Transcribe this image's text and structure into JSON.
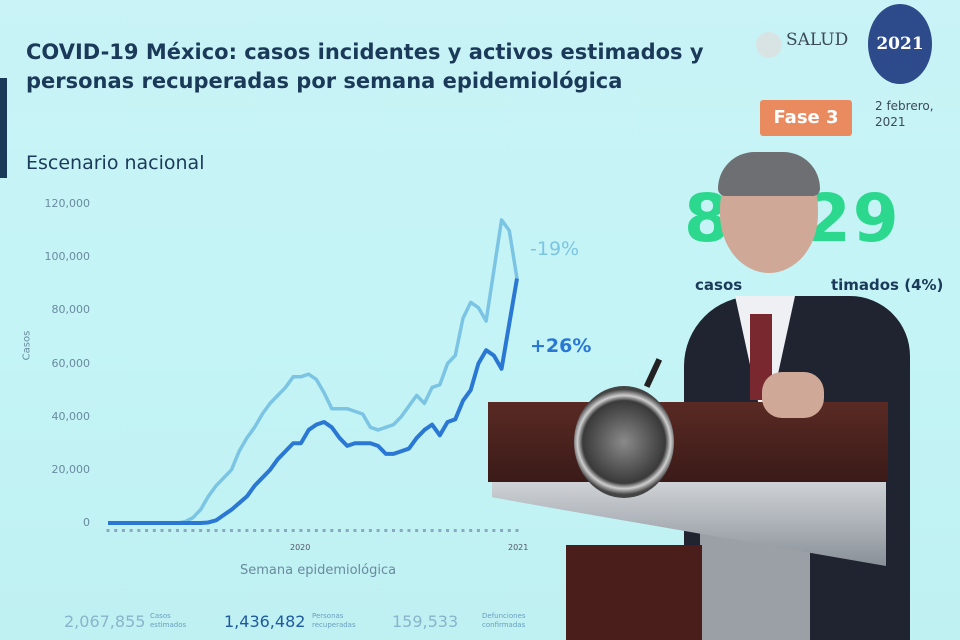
{
  "header": {
    "title": "COVID-19 México: casos incidentes y activos estimados y personas recuperadas por semana epidemiológica",
    "subtitle": "Escenario nacional",
    "logo_text": "SALUD",
    "seal_text": "2021",
    "phase_badge": "Fase 3",
    "date": "2 febrero, 2021"
  },
  "kpi": {
    "big_number_visible": "8  529",
    "caption": "casos                 timados (4%)",
    "color": "#2bd88e"
  },
  "stats": [
    {
      "value": "2,067,855",
      "label": "Casos estimados"
    },
    {
      "value": "1,436,482",
      "label": "Personas recuperadas"
    },
    {
      "value": "159,533",
      "label": "Defunciones confirmadas"
    }
  ],
  "chart_data": {
    "type": "line",
    "xlabel": "Semana epidemiológica",
    "ylabel": "Casos",
    "ylim": [
      0,
      120000
    ],
    "yticks": [
      "0",
      "20,000",
      "40,000",
      "60,000",
      "80,000",
      "100,000",
      "120,000"
    ],
    "xtick_labels": [
      "2020",
      "2021"
    ],
    "grid": false,
    "x": [
      1,
      2,
      3,
      4,
      5,
      6,
      7,
      8,
      9,
      10,
      11,
      12,
      13,
      14,
      15,
      16,
      17,
      18,
      19,
      20,
      21,
      22,
      23,
      24,
      25,
      26,
      27,
      28,
      29,
      30,
      31,
      32,
      33,
      34,
      35,
      36,
      37,
      38,
      39,
      40,
      41,
      42,
      43,
      44,
      45,
      46,
      47,
      48,
      49,
      50,
      51,
      52,
      53,
      54
    ],
    "series": [
      {
        "color": "#7cc4e4",
        "annotation": "-19%",
        "values": [
          0,
          0,
          0,
          0,
          0,
          0,
          0,
          0,
          0,
          0,
          500,
          2000,
          5000,
          10000,
          14000,
          17000,
          20000,
          27000,
          32000,
          36000,
          41000,
          45000,
          48000,
          51000,
          55000,
          55000,
          56000,
          54000,
          49000,
          43000,
          43000,
          43000,
          42000,
          41000,
          36000,
          35000,
          36000,
          37000,
          40000,
          44000,
          48000,
          45000,
          51000,
          52000,
          60000,
          63000,
          77000,
          83000,
          81000,
          76000,
          95000,
          114000,
          110000,
          92000
        ]
      },
      {
        "color": "#2a78d4",
        "annotation": "+26%",
        "values": [
          0,
          0,
          0,
          0,
          0,
          0,
          0,
          0,
          0,
          0,
          0,
          0,
          0,
          200,
          1000,
          3000,
          5000,
          7500,
          10000,
          14000,
          17000,
          20000,
          24000,
          27000,
          30000,
          30000,
          35000,
          37000,
          38000,
          36000,
          32000,
          29000,
          30000,
          30000,
          30000,
          29000,
          26000,
          26000,
          27000,
          28000,
          32000,
          35000,
          37000,
          33000,
          38000,
          39000,
          46000,
          50000,
          60000,
          65000,
          63000,
          58000,
          75000,
          92000
        ]
      }
    ]
  }
}
